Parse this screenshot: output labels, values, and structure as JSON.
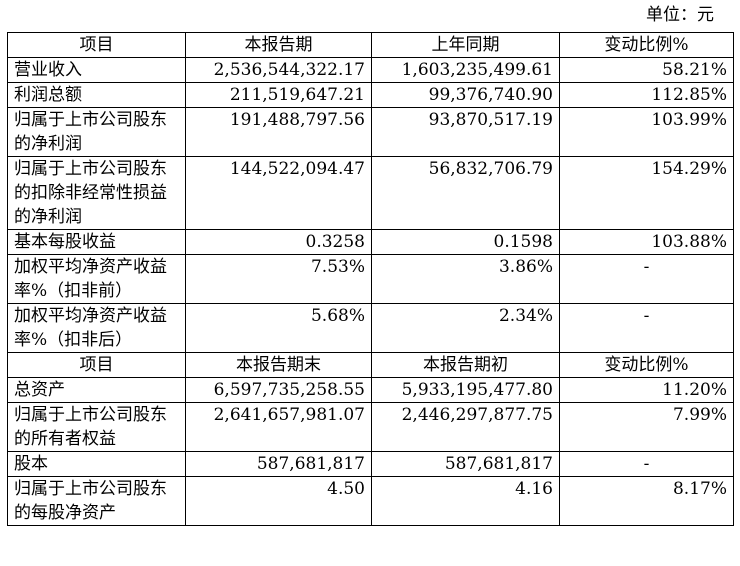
{
  "unit_label": "单位：元",
  "section1": {
    "headers": [
      "项目",
      "本报告期",
      "上年同期",
      "变动比例%"
    ],
    "rows": [
      {
        "label": "营业收入",
        "current": "2,536,544,322.17",
        "prior": "1,603,235,499.61",
        "change": "58.21%"
      },
      {
        "label": "利润总额",
        "current": "211,519,647.21",
        "prior": "99,376,740.90",
        "change": "112.85%"
      },
      {
        "label": "归属于上市公司股东的净利润",
        "current": "191,488,797.56",
        "prior": "93,870,517.19",
        "change": "103.99%"
      },
      {
        "label": "归属于上市公司股东的扣除非经常性损益的净利润",
        "current": "144,522,094.47",
        "prior": "56,832,706.79",
        "change": "154.29%"
      },
      {
        "label": "基本每股收益",
        "current": "0.3258",
        "prior": "0.1598",
        "change": "103.88%"
      },
      {
        "label": "加权平均净资产收益率%（扣非前）",
        "current": "7.53%",
        "prior": "3.86%",
        "change": "-"
      },
      {
        "label": "加权平均净资产收益率%（扣非后）",
        "current": "5.68%",
        "prior": "2.34%",
        "change": "-"
      }
    ]
  },
  "section2": {
    "headers": [
      "项目",
      "本报告期末",
      "本报告期初",
      "变动比例%"
    ],
    "rows": [
      {
        "label": "总资产",
        "current": "6,597,735,258.55",
        "prior": "5,933,195,477.80",
        "change": "11.20%"
      },
      {
        "label": "归属于上市公司股东的所有者权益",
        "current": "2,641,657,981.07",
        "prior": "2,446,297,877.75",
        "change": "7.99%"
      },
      {
        "label": "股本",
        "current": "587,681,817",
        "prior": "587,681,817",
        "change": "-"
      },
      {
        "label": "归属于上市公司股东的每股净资产",
        "current": "4.50",
        "prior": "4.16",
        "change": "8.17%"
      }
    ]
  }
}
